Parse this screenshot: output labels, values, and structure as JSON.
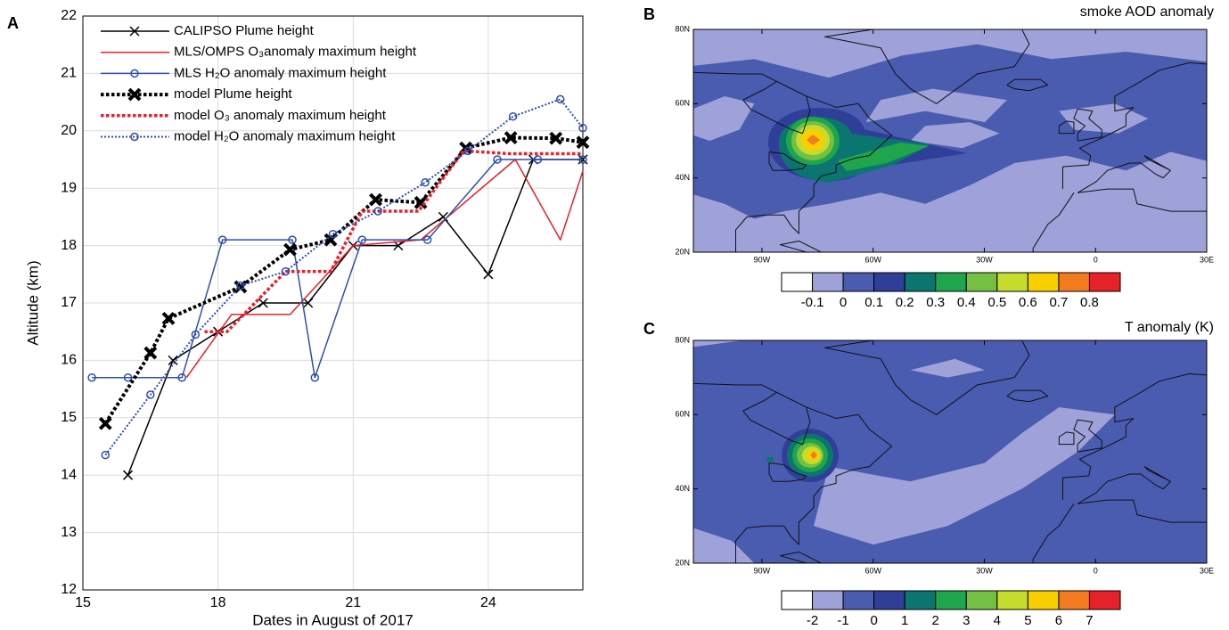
{
  "chart_data": [
    {
      "type": "line",
      "panel": "A",
      "xlabel": "Dates in August of 2017",
      "ylabel": "Altitude (km)",
      "xlim": [
        15,
        26.1
      ],
      "ylim": [
        12,
        22
      ],
      "xticks": [
        15,
        18,
        21,
        24
      ],
      "yticks": [
        12,
        13,
        14,
        15,
        16,
        17,
        18,
        19,
        20,
        21,
        22
      ],
      "grid": true,
      "legend": "upper left",
      "series": [
        {
          "name": "CALIPSO Plume height",
          "color": "#000000",
          "style": "solid",
          "marker": "x",
          "linewidth": 1.5,
          "x": [
            16,
            17,
            18,
            19,
            20,
            21,
            22,
            23,
            24,
            25,
            26.1
          ],
          "values": [
            14,
            16,
            16.5,
            17,
            17,
            18,
            18,
            18.5,
            17.5,
            19.5,
            19.5
          ]
        },
        {
          "name": "MLS/OMPS O₃anomaly maximum height",
          "color": "#e8202a",
          "style": "solid",
          "marker": "none",
          "linewidth": 1.5,
          "x": [
            17.3,
            18.3,
            19.6,
            21,
            22.5,
            24.6,
            25.6,
            26.1
          ],
          "values": [
            15.7,
            16.8,
            16.8,
            18,
            18.1,
            19.5,
            18.1,
            19.3
          ]
        },
        {
          "name": "MLS H₂O anomaly maximum height",
          "color": "#2f4fa8",
          "style": "solid",
          "marker": "o",
          "linewidth": 1.5,
          "x": [
            15.2,
            16,
            17.2,
            18.1,
            19.65,
            20.15,
            21.2,
            22.65,
            24.2,
            25.1,
            26.1
          ],
          "values": [
            15.7,
            15.7,
            15.7,
            18.1,
            18.1,
            15.7,
            18.1,
            18.1,
            19.5,
            19.5,
            19.5
          ]
        },
        {
          "name": "model Plume height",
          "color": "#000000",
          "style": "dotted",
          "marker": "X",
          "linewidth": 4,
          "x": [
            15.5,
            16.5,
            16.9,
            18.5,
            19.6,
            20.5,
            21.5,
            22.5,
            23.5,
            24.5,
            25.5,
            26.1
          ],
          "values": [
            14.9,
            16.13,
            16.73,
            17.28,
            17.93,
            18.1,
            18.8,
            18.75,
            19.7,
            19.88,
            19.87,
            19.8
          ]
        },
        {
          "name": "model O₃ anomaly maximum height",
          "color": "#e8202a",
          "style": "dotted",
          "marker": "none",
          "linewidth": 3.5,
          "x": [
            17.7,
            18.2,
            19.5,
            20.5,
            21.2,
            22.45,
            23.45,
            24.5,
            26.1
          ],
          "values": [
            16.5,
            16.5,
            17.55,
            17.55,
            18.6,
            18.6,
            19.65,
            19.6,
            19.6
          ]
        },
        {
          "name": "model H₂O anomaly maximum height",
          "color": "#2f4fa8",
          "style": "dotted",
          "marker": "o",
          "linewidth": 2,
          "x": [
            15.5,
            16.5,
            17.5,
            18.5,
            19.5,
            20.55,
            21.55,
            22.6,
            23.55,
            24.55,
            25.6,
            26.1
          ],
          "values": [
            14.35,
            15.4,
            16.45,
            17.3,
            17.55,
            18.2,
            18.6,
            19.1,
            19.65,
            20.25,
            20.55,
            20.05
          ]
        }
      ]
    },
    {
      "type": "contour",
      "panel": "B",
      "title": "smoke AOD anomaly",
      "xlim": [
        -108.5,
        30
      ],
      "ylim": [
        20,
        80
      ],
      "xticks": [
        {
          "value": -90,
          "label": "90W"
        },
        {
          "value": -60,
          "label": "60W"
        },
        {
          "value": -30,
          "label": "30W"
        },
        0,
        {
          "value": 30,
          "label": "30E"
        }
      ],
      "yticks": [
        {
          "value": 20,
          "label": "20N"
        },
        {
          "value": 40,
          "label": "40N"
        },
        {
          "value": 60,
          "label": "60N"
        },
        {
          "value": 80,
          "label": "80N"
        }
      ],
      "colorbar": {
        "levels": [
          -0.1,
          0,
          0.1,
          0.2,
          0.3,
          0.4,
          0.5,
          0.6,
          0.7,
          0.8
        ],
        "colors": [
          "#ffffff",
          "#9ea2d8",
          "#4a5cb0",
          "#2f3f98",
          "#0b7670",
          "#1fa54c",
          "#74c043",
          "#c5dc2d",
          "#f8d000",
          "#f47a20",
          "#e52129"
        ]
      }
    },
    {
      "type": "contour",
      "panel": "C",
      "title": "T anomaly (K)",
      "xlim": [
        -108.5,
        30
      ],
      "ylim": [
        20,
        80
      ],
      "xticks": [
        {
          "value": -90,
          "label": "90W"
        },
        {
          "value": -60,
          "label": "60W"
        },
        {
          "value": -30,
          "label": "30W"
        },
        0,
        {
          "value": 30,
          "label": "30E"
        }
      ],
      "yticks": [
        {
          "value": 20,
          "label": "20N"
        },
        {
          "value": 40,
          "label": "40N"
        },
        {
          "value": 60,
          "label": "60N"
        },
        {
          "value": 80,
          "label": "80N"
        }
      ],
      "colorbar": {
        "levels": [
          -2,
          -1,
          0,
          1,
          2,
          3,
          4,
          5,
          6,
          7
        ],
        "colors": [
          "#ffffff",
          "#9ea2d8",
          "#4a5cb0",
          "#2f3f98",
          "#0b7670",
          "#1fa54c",
          "#74c043",
          "#c5dc2d",
          "#f8d000",
          "#f47a20",
          "#e52129"
        ]
      }
    }
  ]
}
